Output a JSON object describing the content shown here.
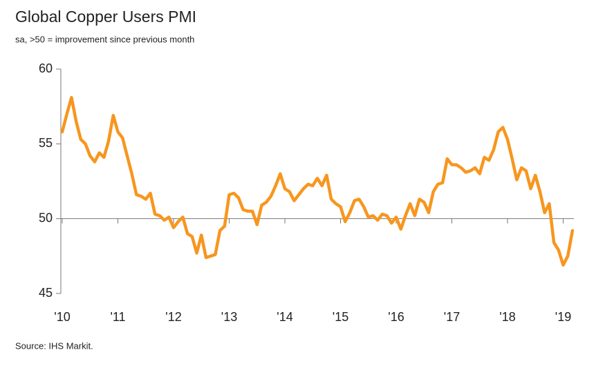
{
  "chart_data": {
    "type": "line",
    "title": "Global Copper Users PMI",
    "subtitle": "sa, >50 = improvement since previous month",
    "source": "Source: IHS Markit.",
    "categories": [
      "'10",
      null,
      null,
      null,
      null,
      null,
      null,
      null,
      null,
      null,
      null,
      null,
      "'11",
      null,
      null,
      null,
      null,
      null,
      null,
      null,
      null,
      null,
      null,
      null,
      "'12",
      null,
      null,
      null,
      null,
      null,
      null,
      null,
      null,
      null,
      null,
      null,
      "'13",
      null,
      null,
      null,
      null,
      null,
      null,
      null,
      null,
      null,
      null,
      null,
      "'14",
      null,
      null,
      null,
      null,
      null,
      null,
      null,
      null,
      null,
      null,
      null,
      "'15",
      null,
      null,
      null,
      null,
      null,
      null,
      null,
      null,
      null,
      null,
      null,
      "'16",
      null,
      null,
      null,
      null,
      null,
      null,
      null,
      null,
      null,
      null,
      null,
      "'17",
      null,
      null,
      null,
      null,
      null,
      null,
      null,
      null,
      null,
      null,
      null,
      "'18",
      null,
      null,
      null,
      null,
      null,
      null,
      null,
      null,
      null,
      null,
      null,
      "'19",
      null,
      null
    ],
    "series": [
      {
        "name": "Global Copper Users PMI",
        "color": "#f7961e",
        "values": [
          55.8,
          57.0,
          58.1,
          56.5,
          55.3,
          55.0,
          54.2,
          53.8,
          54.4,
          54.1,
          55.2,
          56.9,
          55.8,
          55.4,
          54.2,
          53.0,
          51.6,
          51.5,
          51.3,
          51.7,
          50.3,
          50.2,
          49.9,
          50.1,
          49.4,
          49.8,
          50.1,
          49.0,
          48.8,
          47.7,
          48.9,
          47.4,
          47.5,
          47.6,
          49.2,
          49.5,
          51.6,
          51.7,
          51.4,
          50.6,
          50.5,
          50.5,
          49.6,
          50.9,
          51.1,
          51.5,
          52.2,
          53.0,
          52.0,
          51.8,
          51.2,
          51.6,
          52.0,
          52.3,
          52.2,
          52.7,
          52.2,
          52.9,
          51.3,
          51.0,
          50.8,
          49.8,
          50.4,
          51.2,
          51.3,
          50.8,
          50.1,
          50.2,
          49.9,
          50.3,
          50.2,
          49.7,
          50.1,
          49.3,
          50.2,
          51.0,
          50.2,
          51.3,
          51.1,
          50.4,
          51.8,
          52.3,
          52.4,
          54.0,
          53.6,
          53.6,
          53.4,
          53.1,
          53.2,
          53.4,
          53.0,
          54.1,
          53.9,
          54.6,
          55.8,
          56.1,
          55.3,
          54.0,
          52.6,
          53.4,
          53.2,
          52.0,
          52.9,
          51.8,
          50.4,
          51.0,
          48.4,
          47.9,
          46.9,
          47.5,
          49.2
        ]
      }
    ],
    "ylim": [
      45,
      60
    ],
    "yticks": [
      45,
      50,
      55,
      60
    ],
    "reference_line": 50
  }
}
